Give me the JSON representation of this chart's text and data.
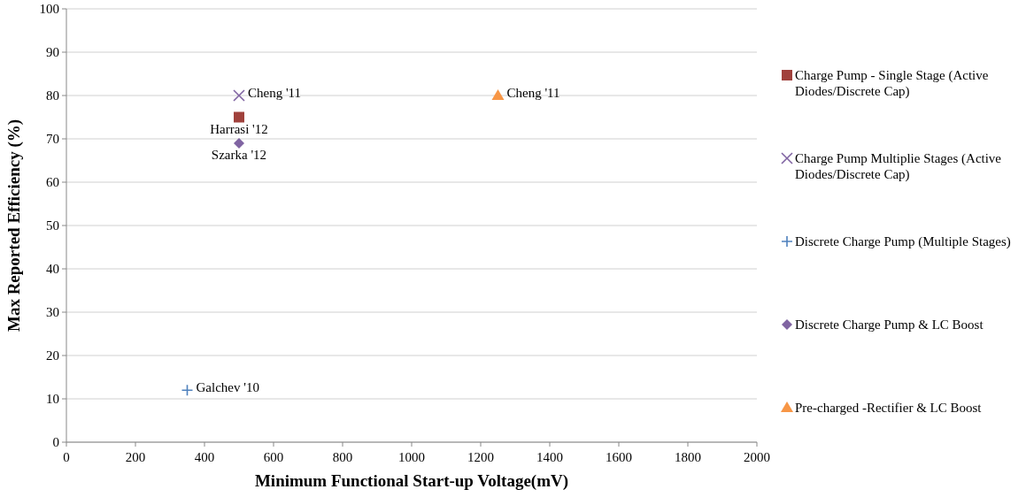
{
  "chart_data": {
    "type": "scatter",
    "xlabel": "Minimum Functional  Start-up Voltage(mV)",
    "ylabel": "Max Reported Efficiency (%)",
    "xlim": [
      0,
      2000
    ],
    "xticks": [
      0,
      200,
      400,
      600,
      800,
      1000,
      1200,
      1400,
      1600,
      1800,
      2000
    ],
    "ylim": [
      0,
      100
    ],
    "yticks": [
      0,
      10,
      20,
      30,
      40,
      50,
      60,
      70,
      80,
      90,
      100
    ],
    "grid": "y",
    "legend": "right",
    "series": [
      {
        "name": "Charge Pump - Single Stage (Active Diodes/Discrete Cap)",
        "color": "#a0413c",
        "marker": "square",
        "x": [
          500
        ],
        "values": [
          75
        ]
      },
      {
        "name": "Charge Pump Multiplie Stages (Active Diodes/Discrete Cap)",
        "color": "#8064a2",
        "marker": "cross",
        "x": [
          500
        ],
        "values": [
          80
        ]
      },
      {
        "name": "Discrete Charge Pump (Multiple Stages)",
        "color": "#4f81bd",
        "marker": "plus",
        "x": [
          350
        ],
        "values": [
          12
        ]
      },
      {
        "name": "Discrete Charge Pump & LC Boost",
        "color": "#8064a2",
        "marker": "diamond",
        "x": [
          500
        ],
        "values": [
          69
        ]
      },
      {
        "name": "Pre-charged -Rectifier & LC Boost",
        "color": "#f79646",
        "marker": "triangle",
        "x": [
          1250
        ],
        "values": [
          80
        ]
      }
    ],
    "annotations": [
      {
        "text": "Cheng '11",
        "x": 500,
        "y": 80
      },
      {
        "text": "Harrasi '12",
        "x": 500,
        "y": 75
      },
      {
        "text": "Szarka '12",
        "x": 500,
        "y": 69
      },
      {
        "text": "Galchev '10",
        "x": 350,
        "y": 12
      },
      {
        "text": "Cheng '11",
        "x": 1250,
        "y": 80
      }
    ]
  }
}
